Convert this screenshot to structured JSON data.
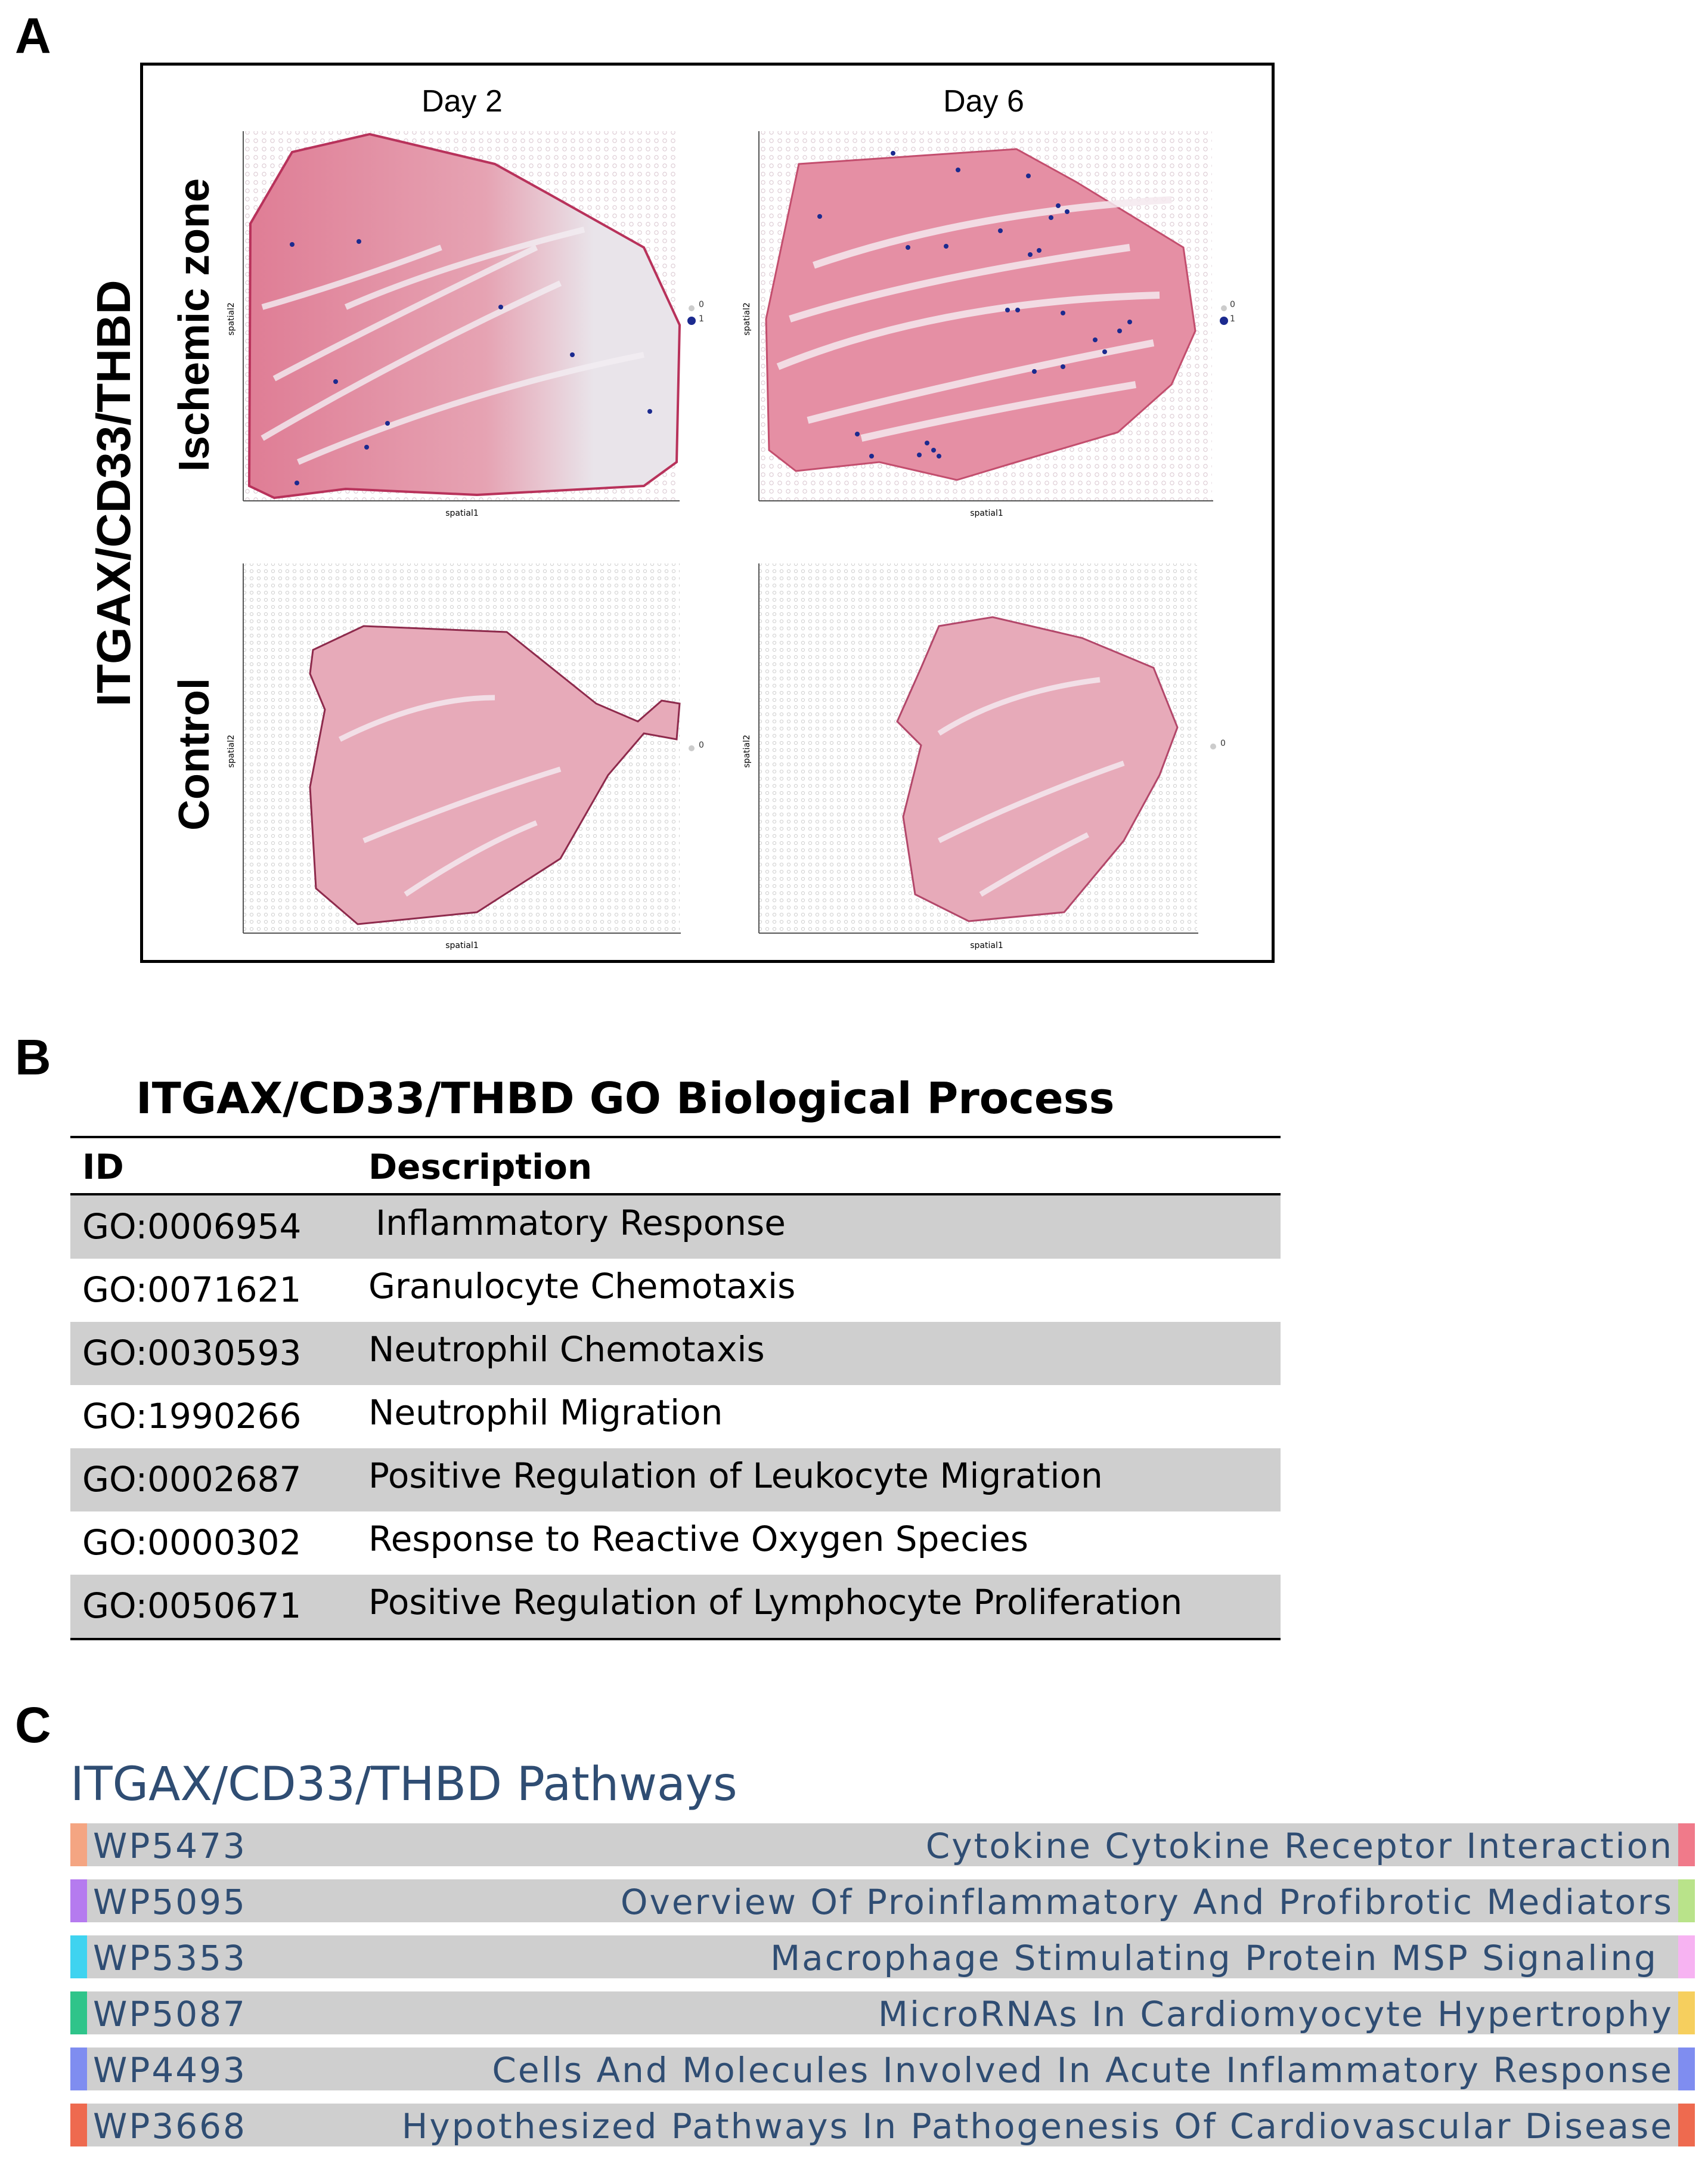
{
  "panelA": {
    "letter": "A",
    "side_title": "ITGAX/CD33/THBD",
    "columns": [
      "Day 2",
      "Day 6"
    ],
    "rows": [
      "Ischemic zone",
      "Control"
    ],
    "x_axis_label": "spatial1",
    "y_axis_label": "spatial2",
    "legend_ischemic": [
      "0",
      "1"
    ],
    "legend_control": [
      "0"
    ]
  },
  "panelB": {
    "letter": "B",
    "title": "ITGAX/CD33/THBD GO Biological Process",
    "header": {
      "id": "ID",
      "description": "Description"
    },
    "rows": [
      {
        "id": "GO:0006954",
        "description": "Inflammatory Response"
      },
      {
        "id": "GO:0071621",
        "description": "Granulocyte Chemotaxis"
      },
      {
        "id": "GO:0030593",
        "description": "Neutrophil Chemotaxis"
      },
      {
        "id": "GO:1990266",
        "description": "Neutrophil Migration"
      },
      {
        "id": "GO:0002687",
        "description": "Positive Regulation of Leukocyte Migration"
      },
      {
        "id": "GO:0000302",
        "description": "Response to Reactive Oxygen Species"
      },
      {
        "id": "GO:0050671",
        "description": "Positive Regulation of Lymphocyte Proliferation"
      }
    ]
  },
  "panelC": {
    "letter": "C",
    "title": "ITGAX/CD33/THBD Pathways",
    "rows": [
      {
        "id": "WP5473",
        "name": "Cytokine Cytokine Receptor Interaction",
        "left_color": "#f4a582",
        "right_color": "#f07a8a"
      },
      {
        "id": "WP5095",
        "name": "Overview Of Proinflammatory And Profibrotic Mediators",
        "left_color": "#b57bef",
        "right_color": "#b9e38a"
      },
      {
        "id": "WP5353",
        "name": "Macrophage Stimulating Protein MSP Signaling",
        "left_color": "#3fd3f0",
        "right_color": "#f7b3f2"
      },
      {
        "id": "WP5087",
        "name": "MicroRNAs In Cardiomyocyte Hypertrophy",
        "left_color": "#2fc48a",
        "right_color": "#f6cf5e"
      },
      {
        "id": "WP4493",
        "name": "Cells And Molecules Involved In Acute Inflammatory Response",
        "left_color": "#7f8df0",
        "right_color": "#7f8df0"
      },
      {
        "id": "WP3668",
        "name": "Hypothesized Pathways In Pathogenesis Of Cardiovascular Disease",
        "left_color": "#ee6a4f",
        "right_color": "#ee6a4f"
      }
    ]
  }
}
